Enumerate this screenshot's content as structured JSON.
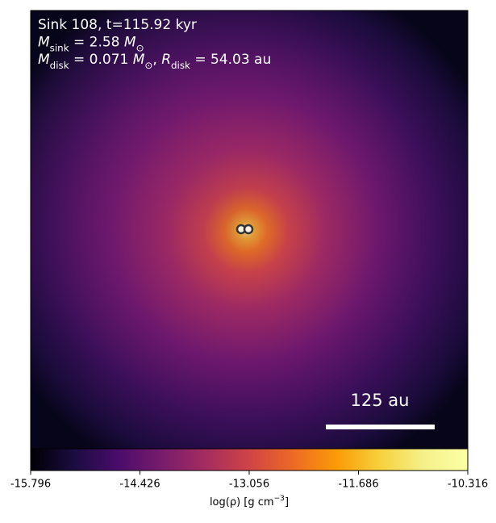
{
  "chart_data": {
    "type": "density-map",
    "annotations": [
      [
        {
          "text": "Sink 108, t=115.92 kyr",
          "style": "normal"
        }
      ],
      [
        {
          "text": "M",
          "style": "italic"
        },
        {
          "text": "sink",
          "style": "sub"
        },
        {
          "text": " = 2.58 ",
          "style": "normal"
        },
        {
          "text": "M",
          "style": "italic"
        },
        {
          "text": "⊙",
          "style": "sub"
        }
      ],
      [
        {
          "text": "M",
          "style": "italic"
        },
        {
          "text": "disk",
          "style": "sub"
        },
        {
          "text": " = 0.071 ",
          "style": "normal"
        },
        {
          "text": "M",
          "style": "italic"
        },
        {
          "text": "⊙",
          "style": "sub"
        },
        {
          "text": ", ",
          "style": "normal"
        },
        {
          "text": "R",
          "style": "italic"
        },
        {
          "text": "disk",
          "style": "sub"
        },
        {
          "text": " = 54.03 au",
          "style": "normal"
        }
      ]
    ],
    "scale_bar_label": "125 au",
    "colormap": "inferno",
    "clim": [
      -15.796,
      -10.316
    ],
    "cticks": [
      -15.796,
      -14.426,
      -13.056,
      -11.686,
      -10.316
    ],
    "colorbar_label": [
      {
        "text": "log(ρ) [g cm",
        "style": "normal"
      },
      {
        "text": "−3",
        "style": "sup"
      },
      {
        "text": "]",
        "style": "normal"
      }
    ]
  }
}
